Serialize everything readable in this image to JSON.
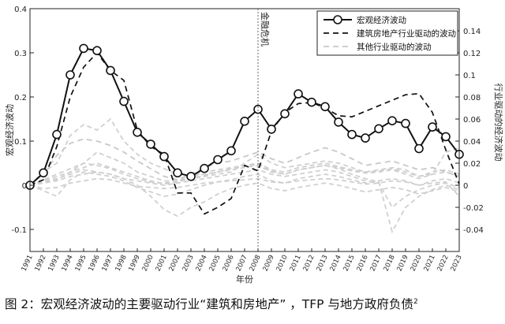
{
  "chart_data": {
    "type": "line",
    "x": [
      "1991",
      "1992",
      "1993",
      "1994",
      "1995",
      "1996",
      "1997",
      "1998",
      "1999",
      "2000",
      "2001",
      "2002",
      "2003",
      "2004",
      "2005",
      "2006",
      "2007",
      "2008",
      "2009",
      "2010",
      "2011",
      "2012",
      "2013",
      "2014",
      "2015",
      "2016",
      "2017",
      "2018",
      "2019",
      "2020",
      "2021",
      "2022",
      "2023"
    ],
    "xlabel": "年份",
    "ylabel_left": "宏观经济波动",
    "ylabel_right": "行业驱动的经济波动",
    "ylim_left": [
      -0.15,
      0.4
    ],
    "yticks_left": [
      -0.1,
      0,
      0.1,
      0.2,
      0.3,
      0.4
    ],
    "ytick_labels_left": [
      "-0.1",
      "0",
      "0.1",
      "0.2",
      "0.3",
      "0.4"
    ],
    "ylim_right": [
      -0.06,
      0.16
    ],
    "yticks_right": [
      -0.04,
      -0.02,
      0,
      0.02,
      0.04,
      0.06,
      0.08,
      0.1,
      0.12,
      0.14
    ],
    "ytick_labels_right": [
      "-0.04",
      "-0.02",
      "0",
      "0.02",
      "0.04",
      "0.06",
      "0.08",
      "0.1",
      "0.12",
      "0.14"
    ],
    "grid": false,
    "legend_position": "top-right",
    "annotation": "金融危机",
    "annotation_year": "2008",
    "series": [
      {
        "name": "宏观经济波动",
        "axis": "left",
        "style": "solid-circle",
        "color": "#111111",
        "values": [
          0.0,
          0.028,
          0.115,
          0.25,
          0.31,
          0.305,
          0.26,
          0.19,
          0.12,
          0.093,
          0.065,
          0.028,
          0.02,
          0.038,
          0.058,
          0.078,
          0.145,
          0.172,
          0.127,
          0.162,
          0.207,
          0.188,
          0.178,
          0.143,
          0.115,
          0.107,
          0.128,
          0.146,
          0.14,
          0.083,
          0.132,
          0.11,
          0.07
        ]
      },
      {
        "name": "建筑房地产行业驱动的波动",
        "axis": "right",
        "style": "dashed",
        "color": "#111111",
        "values": [
          0.0,
          0.005,
          0.035,
          0.08,
          0.107,
          0.12,
          0.104,
          0.095,
          0.05,
          0.035,
          0.028,
          -0.007,
          -0.007,
          -0.026,
          -0.02,
          -0.012,
          0.018,
          0.013,
          0.049,
          0.066,
          0.074,
          0.075,
          0.07,
          0.063,
          0.062,
          0.067,
          0.072,
          0.077,
          0.082,
          0.083,
          0.066,
          0.032,
          0.001
        ]
      },
      {
        "name": "其他行业驱动的波动",
        "axis": "right",
        "style": "dashed-light",
        "color": "#c8c8c8",
        "values": [
          0.0,
          0.01,
          0.027,
          0.038,
          0.042,
          0.04,
          0.036,
          0.03,
          0.022,
          0.015,
          0.008,
          0.005,
          0.01,
          0.016,
          0.02,
          0.022,
          0.026,
          0.03,
          0.024,
          0.02,
          0.025,
          0.03,
          0.034,
          0.03,
          0.024,
          0.018,
          0.02,
          0.022,
          0.018,
          0.014,
          0.016,
          0.012,
          0.008
        ]
      }
    ],
    "other_lines": [
      [
        0.0,
        0.005,
        0.01,
        0.015,
        0.02,
        0.018,
        0.015,
        0.01,
        0.006,
        0.003,
        0.002,
        0.004,
        0.008,
        0.012,
        0.014,
        0.016,
        0.018,
        0.02,
        0.014,
        0.012,
        0.016,
        0.018,
        0.02,
        0.017,
        0.014,
        0.012,
        0.013,
        0.015,
        0.012,
        0.008,
        0.012,
        0.014,
        0.01
      ],
      [
        0.0,
        -0.005,
        -0.01,
        0.005,
        0.012,
        0.01,
        0.008,
        0.004,
        -0.002,
        -0.006,
        -0.01,
        -0.008,
        -0.004,
        0.0,
        0.003,
        0.005,
        0.008,
        0.01,
        0.004,
        0.002,
        0.006,
        0.008,
        0.01,
        0.008,
        0.005,
        0.002,
        0.004,
        0.006,
        0.004,
        0.0,
        0.004,
        0.006,
        0.002
      ],
      [
        0.0,
        0.012,
        0.02,
        0.045,
        0.055,
        0.05,
        0.06,
        0.04,
        0.028,
        0.02,
        0.015,
        0.01,
        0.008,
        0.01,
        0.012,
        0.014,
        0.016,
        0.018,
        0.012,
        0.01,
        0.014,
        0.016,
        0.018,
        0.016,
        0.013,
        0.011,
        0.012,
        0.014,
        0.01,
        0.006,
        0.01,
        0.012,
        0.008
      ],
      [
        0.0,
        0.002,
        0.004,
        0.008,
        0.01,
        0.012,
        0.01,
        0.006,
        0.0,
        -0.01,
        -0.022,
        -0.028,
        -0.02,
        -0.015,
        -0.008,
        -0.003,
        0.0,
        0.002,
        -0.003,
        -0.005,
        -0.002,
        0.0,
        0.002,
        0.0,
        -0.003,
        -0.006,
        -0.004,
        -0.002,
        -0.004,
        -0.008,
        -0.005,
        -0.002,
        -0.006
      ],
      [
        0.0,
        0.003,
        0.006,
        0.01,
        0.014,
        0.012,
        0.01,
        0.006,
        0.004,
        0.002,
        0.0,
        0.002,
        0.004,
        0.006,
        0.008,
        0.01,
        0.012,
        0.014,
        0.01,
        0.008,
        0.01,
        0.012,
        0.014,
        0.012,
        0.008,
        0.004,
        0.002,
        -0.02,
        -0.01,
        -0.004,
        0.0,
        0.002,
        -0.002
      ],
      [
        0.0,
        0.004,
        0.008,
        0.012,
        0.016,
        0.02,
        0.016,
        0.012,
        0.008,
        0.004,
        0.001,
        0.003,
        0.006,
        0.009,
        0.012,
        0.015,
        0.017,
        0.019,
        0.013,
        0.01,
        0.014,
        0.016,
        0.018,
        0.015,
        0.01,
        0.006,
        0.003,
        -0.042,
        -0.02,
        -0.01,
        -0.004,
        0.0,
        -0.004
      ],
      [
        0.0,
        0.002,
        0.005,
        0.012,
        0.02,
        0.03,
        0.025,
        0.02,
        0.012,
        0.008,
        0.004,
        0.004,
        0.006,
        0.008,
        0.01,
        0.012,
        0.02,
        0.028,
        0.02,
        0.016,
        0.018,
        0.02,
        0.022,
        0.02,
        0.016,
        0.012,
        0.014,
        0.016,
        0.014,
        0.008,
        0.01,
        0.03,
        0.034
      ],
      [
        0.0,
        -0.003,
        -0.002,
        0.002,
        0.004,
        0.006,
        0.005,
        0.002,
        -0.001,
        -0.002,
        -0.003,
        -0.002,
        0.0,
        0.002,
        0.003,
        0.004,
        0.005,
        0.006,
        0.003,
        0.002,
        0.004,
        0.005,
        0.006,
        0.005,
        0.003,
        0.001,
        0.002,
        0.004,
        0.003,
        0.0,
        0.002,
        0.003,
        -0.01
      ]
    ]
  },
  "caption": {
    "text": "图 2：宏观经济波动的主要驱动行业“建筑和房地产” ，TFP 与地方政府负债",
    "superscript": "2"
  }
}
